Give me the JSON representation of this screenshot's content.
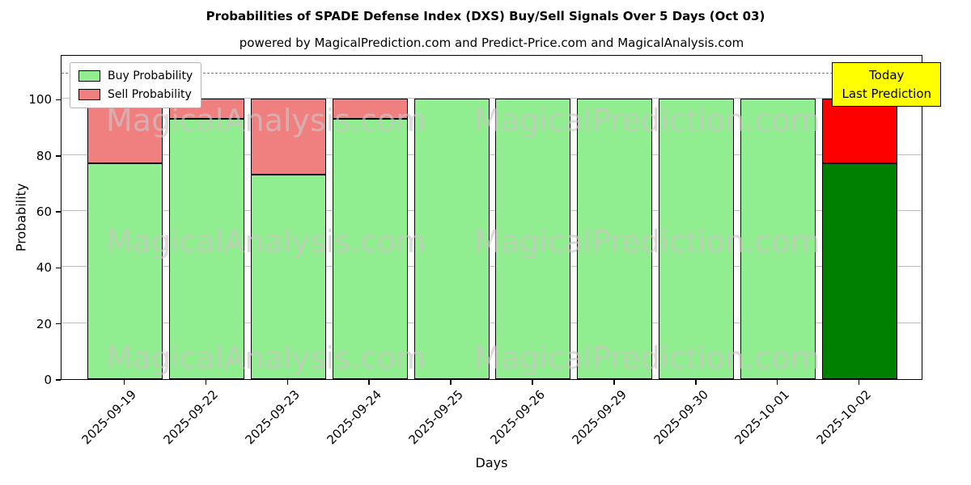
{
  "chart_data": {
    "type": "bar",
    "stacked": true,
    "title": "Probabilities of SPADE Defense Index (DXS) Buy/Sell Signals Over 5 Days (Oct 03)",
    "subtitle": "powered by MagicalPrediction.com and Predict-Price.com and MagicalAnalysis.com",
    "xlabel": "Days",
    "ylabel": "Probability",
    "categories": [
      "2025-09-19",
      "2025-09-22",
      "2025-09-23",
      "2025-09-24",
      "2025-09-25",
      "2025-09-26",
      "2025-09-29",
      "2025-09-30",
      "2025-10-01",
      "2025-10-02"
    ],
    "series": [
      {
        "name": "Buy Probability",
        "color": "#90ee90",
        "values": [
          77,
          93,
          73,
          93,
          100,
          100,
          100,
          100,
          100,
          77
        ]
      },
      {
        "name": "Sell Probability",
        "color": "#f08080",
        "values": [
          23,
          7,
          27,
          7,
          0,
          0,
          0,
          0,
          0,
          23
        ]
      }
    ],
    "today": {
      "index": 9,
      "category": "2025-10-02",
      "buy_color": "#008000",
      "sell_color": "#ff0000",
      "box_color": "#ffff00",
      "label_lines": [
        "Today",
        "Last Prediction"
      ]
    },
    "ylim": [
      0,
      116
    ],
    "yticks": [
      0,
      20,
      40,
      60,
      80,
      100
    ],
    "dashed_line_y": 110,
    "grid": true,
    "legend_position": "top-left",
    "watermarks": [
      "MagicalAnalysis.com",
      "MagicalPrediction.com"
    ]
  }
}
